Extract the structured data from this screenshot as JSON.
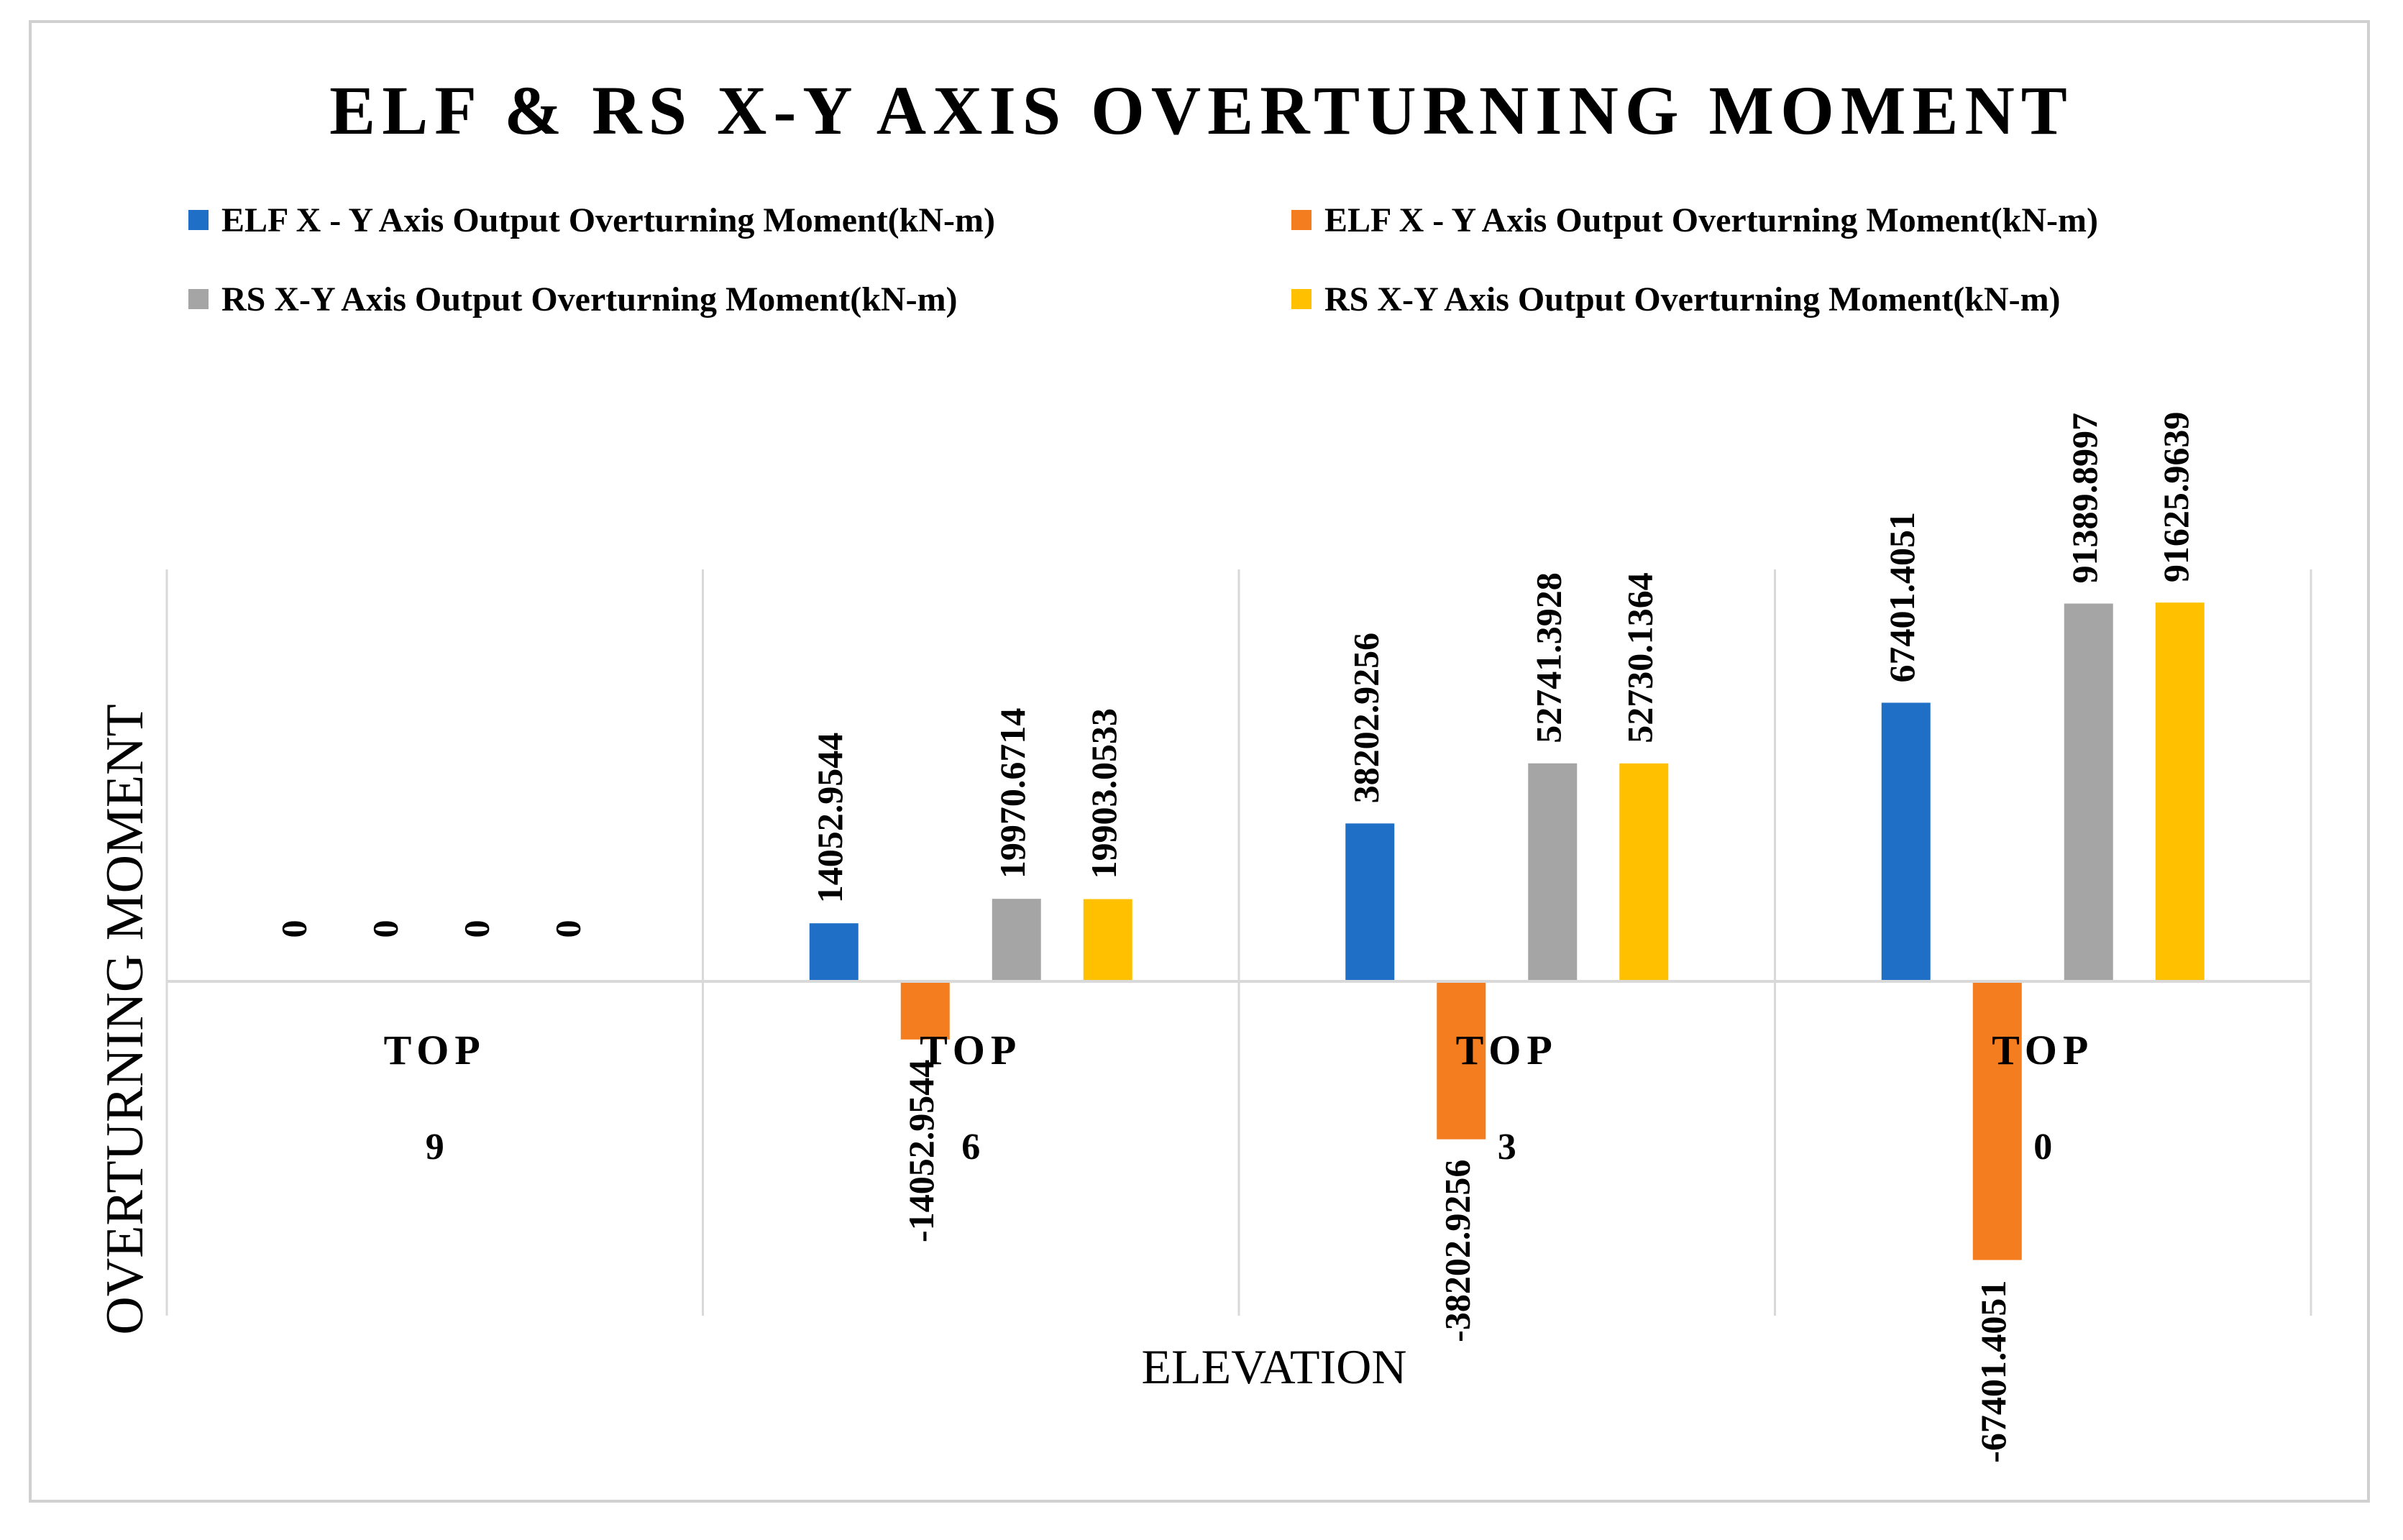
{
  "chart_data": {
    "type": "bar",
    "title": "ELF & RS X-Y AXIS OVERTURNING MOMENT",
    "xlabel": "ELEVATION",
    "ylabel": "OVERTURNING MOMENT",
    "categories": [
      {
        "line1": "TOP",
        "line2": "9"
      },
      {
        "line1": "TOP",
        "line2": "6"
      },
      {
        "line1": "TOP",
        "line2": "3"
      },
      {
        "line1": "TOP",
        "line2": "0"
      }
    ],
    "series": [
      {
        "name": "ELF X - Y Axis Output Overturning Moment(kN-m)",
        "color": "#1f6fc6",
        "values": [
          0,
          14052.9544,
          38202.9256,
          67401.4051
        ],
        "labels": [
          "0",
          "14052.9544",
          "38202.9256",
          "67401.4051"
        ]
      },
      {
        "name": "ELF X - Y Axis Output Overturning Moment(kN-m)",
        "color": "#f47d20",
        "values": [
          0,
          -14052.9544,
          -38202.9256,
          -67401.4051
        ],
        "labels": [
          "0",
          "-14052.9544",
          "-38202.9256",
          "-67401.4051"
        ]
      },
      {
        "name": "RS X-Y Axis Output Overturning Moment(kN-m)",
        "color": "#a5a5a5",
        "values": [
          0,
          19970.6714,
          52741.3928,
          91389.8997
        ],
        "labels": [
          "0",
          "19970.6714",
          "52741.3928",
          "91389.8997"
        ]
      },
      {
        "name": "RS X-Y Axis Output Overturning Moment(kN-m)",
        "color": "#ffc000",
        "values": [
          0,
          19903.0533,
          52730.1364,
          91625.9639
        ],
        "labels": [
          "0",
          "19903.0533",
          "52730.1364",
          "91625.9639"
        ]
      }
    ],
    "ylim": [
      -75000,
      100000
    ],
    "grid": "vertical category separators",
    "legend": "top"
  }
}
